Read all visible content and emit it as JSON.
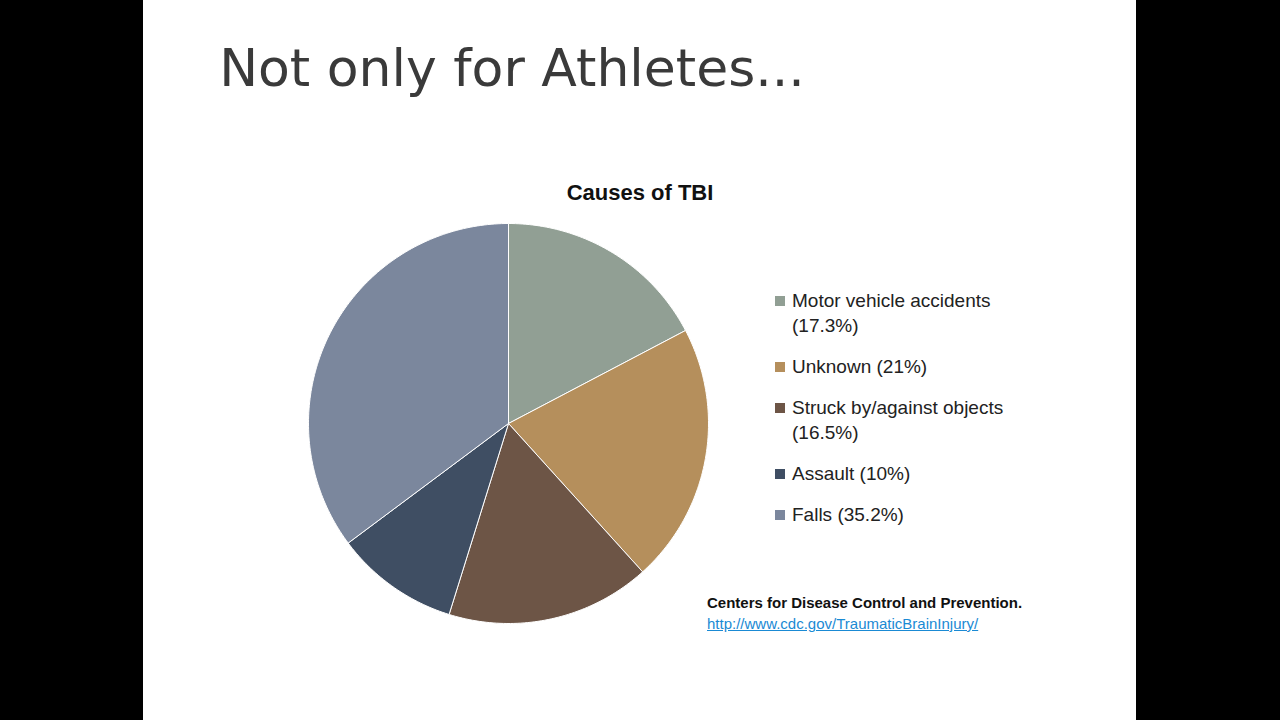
{
  "slide": {
    "title": "Not only for Athletes...",
    "source": "Centers for Disease Control and Prevention.",
    "link": "http://www.cdc.gov/TraumaticBrainInjury/"
  },
  "chart_data": {
    "type": "pie",
    "title": "Causes of TBI",
    "categories": [
      "Motor vehicle accidents (17.3%)",
      "Unknown (21%)",
      "Struck by/against objects (16.5%)",
      "Assault (10%)",
      "Falls (35.2%)"
    ],
    "values": [
      17.3,
      21,
      16.5,
      10,
      35.2
    ],
    "colors": [
      "#919f94",
      "#b58f5c",
      "#6d5546",
      "#3f4e63",
      "#7b879d"
    ],
    "legend": "right",
    "data_labels": false
  }
}
